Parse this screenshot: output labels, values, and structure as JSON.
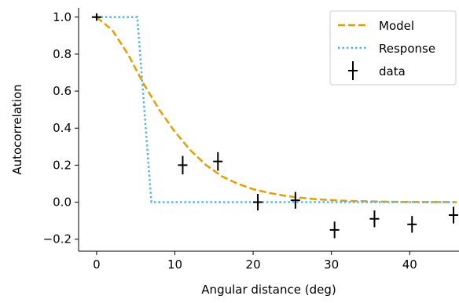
{
  "chart_data": {
    "type": "scatter",
    "title": "",
    "xlabel": "Angular distance (deg)",
    "ylabel": "Autocorrelation",
    "xlim": [
      -2.3,
      46.3
    ],
    "ylim": [
      -0.265,
      1.05
    ],
    "xticks": [
      0,
      10,
      20,
      30,
      40
    ],
    "yticks": [
      -0.2,
      0.0,
      0.2,
      0.4,
      0.6,
      0.8,
      1.0
    ],
    "xtick_labels": [
      "0",
      "10",
      "20",
      "30",
      "40"
    ],
    "ytick_labels": [
      "−0.2",
      "0.0",
      "0.2",
      "0.4",
      "0.6",
      "0.8",
      "1.0"
    ],
    "grid": false,
    "legend_position": "top-right",
    "series": [
      {
        "name": "Model",
        "kind": "line",
        "style": "dashed",
        "color": "#E69F00",
        "x": [
          0,
          2,
          4,
          6,
          8,
          10,
          12,
          14,
          16,
          18,
          20,
          22,
          24,
          26,
          28,
          30,
          32,
          34,
          36,
          38,
          40,
          42,
          44,
          46
        ],
        "y": [
          1.0,
          0.93,
          0.8,
          0.64,
          0.5,
          0.38,
          0.28,
          0.2,
          0.14,
          0.1,
          0.07,
          0.05,
          0.035,
          0.024,
          0.016,
          0.011,
          0.007,
          0.005,
          0.003,
          0.002,
          0.001,
          0.0007,
          0.0004,
          0.0002
        ]
      },
      {
        "name": "Response",
        "kind": "line",
        "style": "dotted",
        "color": "#56B4E9",
        "x": [
          0,
          5.2,
          7.0,
          46
        ],
        "y": [
          1.0,
          1.0,
          0.0,
          0.0
        ]
      },
      {
        "name": "data",
        "kind": "errorbar",
        "color": "#000000",
        "x": [
          0.0,
          11.0,
          15.5,
          20.6,
          25.4,
          30.4,
          35.5,
          40.3,
          45.6
        ],
        "y": [
          1.0,
          0.2,
          0.22,
          0.0,
          0.01,
          -0.15,
          -0.09,
          -0.12,
          -0.07
        ],
        "yerr": [
          0.02,
          0.05,
          0.05,
          0.045,
          0.045,
          0.045,
          0.045,
          0.045,
          0.045
        ]
      }
    ]
  }
}
